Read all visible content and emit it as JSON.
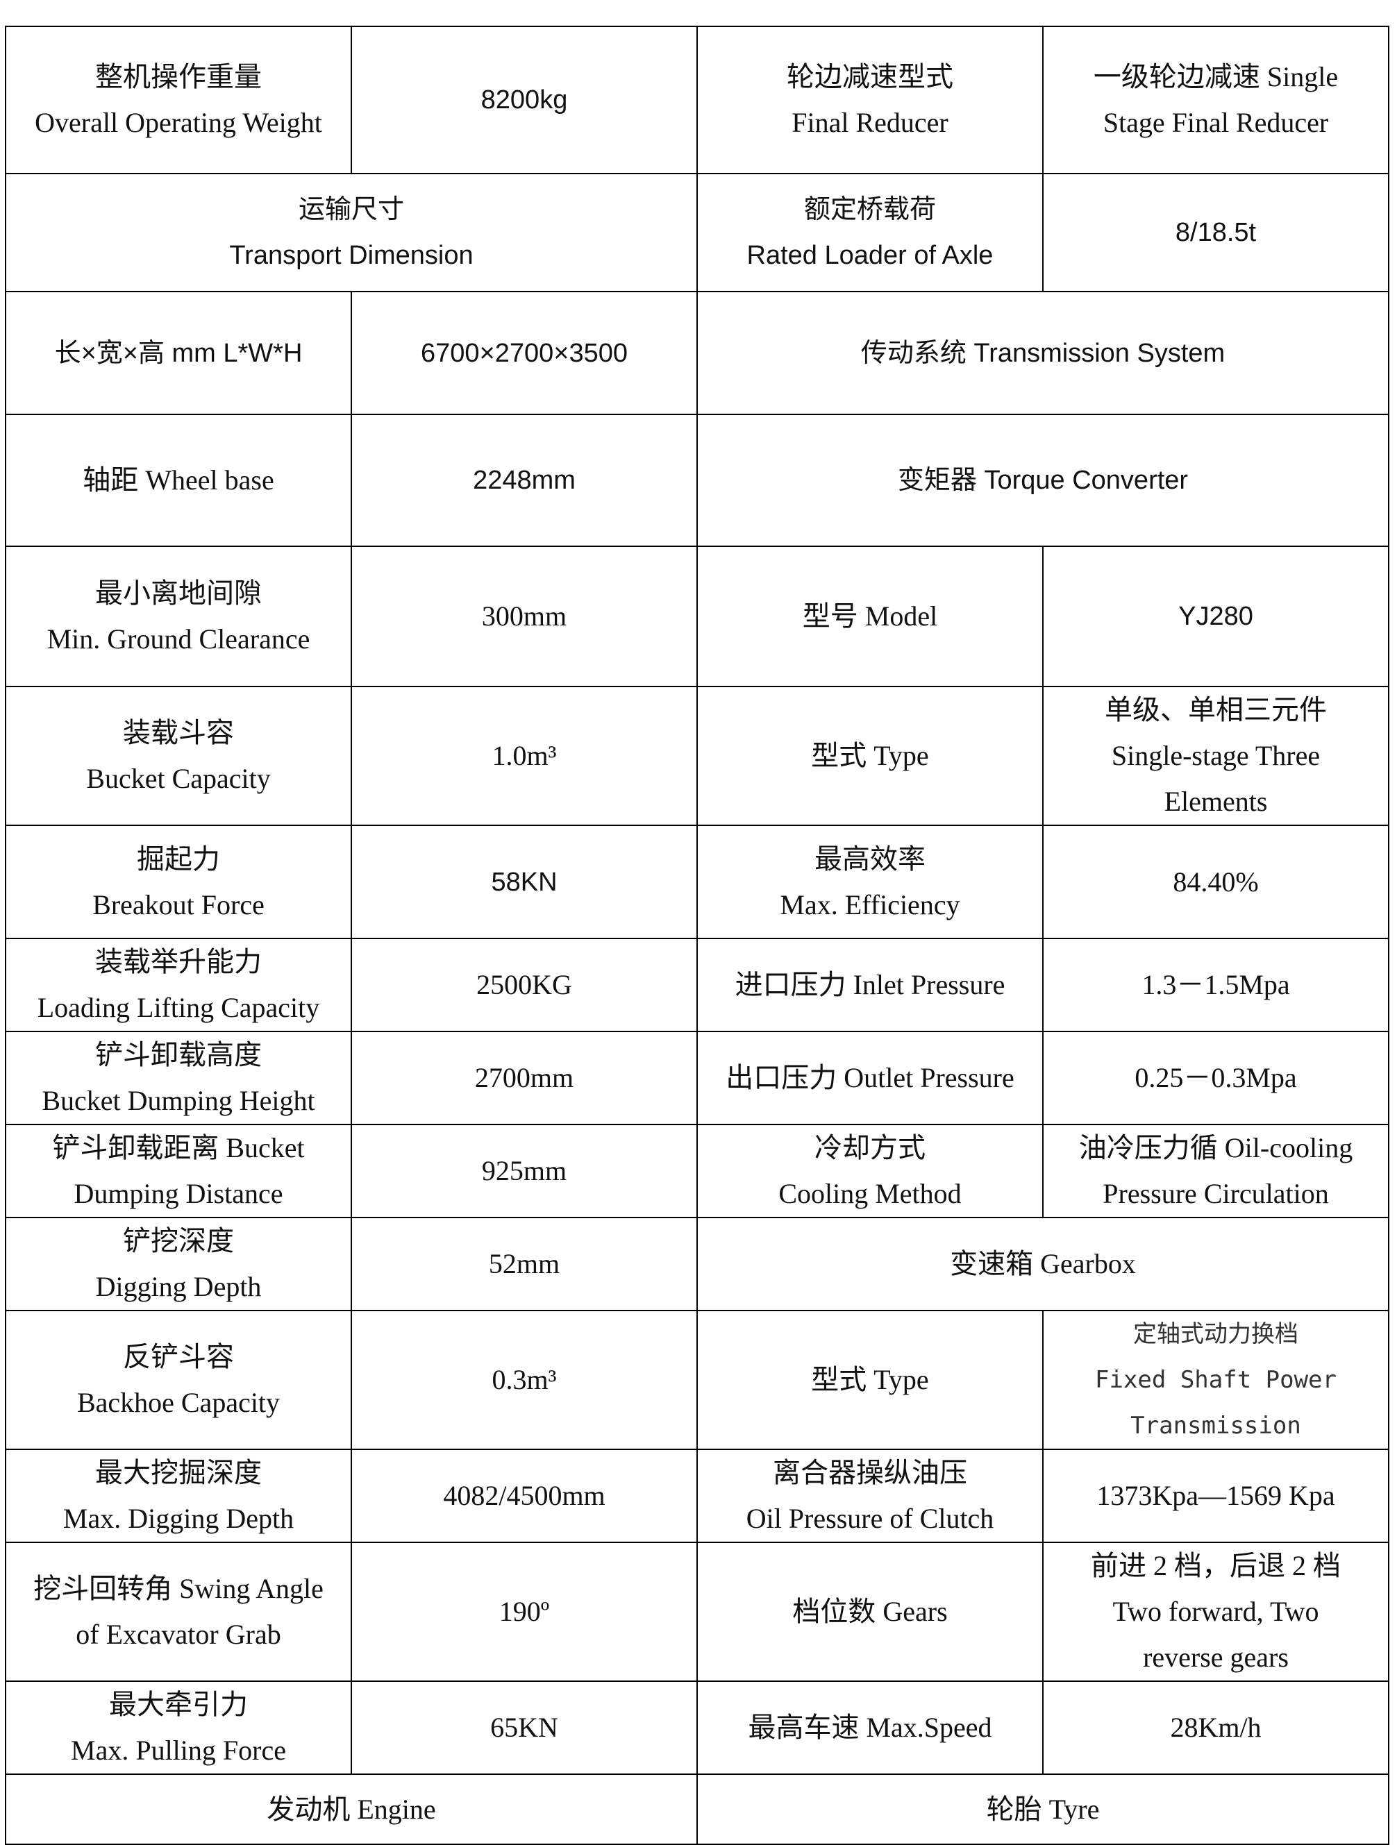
{
  "rows": [
    [
      "整机操作重量\nOverall Operating Weight",
      "8200kg",
      "轮边减速型式\nFinal Reducer",
      "一级轮边减速 Single\nStage Final Reducer"
    ],
    [
      "运输尺寸\nTransport Dimension",
      "额定桥载荷\nRated Loader of Axle",
      "8/18.5t"
    ],
    [
      "长×宽×高 mm L*W*H",
      "6700×2700×3500",
      "传动系统 Transmission System"
    ],
    [
      "轴距  Wheel base",
      "2248mm",
      "变矩器 Torque Converter"
    ],
    [
      "最小离地间隙\nMin. Ground Clearance",
      "300mm",
      "型号 Model",
      "YJ280"
    ],
    [
      "装载斗容\nBucket Capacity",
      "1.0m³",
      "型式 Type",
      "单级、单相三元件\nSingle-stage Three\nElements"
    ],
    [
      "掘起力\nBreakout Force",
      "58KN",
      "最高效率\nMax. Efficiency",
      "84.40%"
    ],
    [
      "装载举升能力\nLoading Lifting Capacity",
      "2500KG",
      "进口压力 Inlet Pressure",
      "1.3－1.5Mpa"
    ],
    [
      "铲斗卸载高度\nBucket Dumping Height",
      "2700mm",
      "出口压力 Outlet Pressure",
      "0.25－0.3Mpa"
    ],
    [
      "铲斗卸载距离 Bucket\nDumping Distance",
      "925mm",
      "冷却方式\nCooling Method",
      "油冷压力循 Oil-cooling\nPressure Circulation"
    ],
    [
      "铲挖深度\nDigging Depth",
      "52mm",
      "变速箱 Gearbox"
    ],
    [
      "反铲斗容\nBackhoe Capacity",
      "0.3m³",
      "型式 Type",
      "定轴式动力换档\nFixed Shaft Power\nTransmission"
    ],
    [
      "最大挖掘深度\nMax. Digging Depth",
      "4082/4500mm",
      "离合器操纵油压\nOil Pressure of Clutch",
      "1373Kpa—1569 Kpa"
    ],
    [
      "挖斗回转角 Swing Angle\nof Excavator Grab",
      "190º",
      "档位数 Gears",
      "前进 2 档，后退 2 档\nTwo forward, Two\nreverse gears"
    ],
    [
      "最大牵引力\nMax. Pulling Force",
      "65KN",
      "最高车速 Max.Speed",
      "28Km/h"
    ],
    [
      "发动机 Engine",
      "轮胎 Tyre"
    ]
  ]
}
